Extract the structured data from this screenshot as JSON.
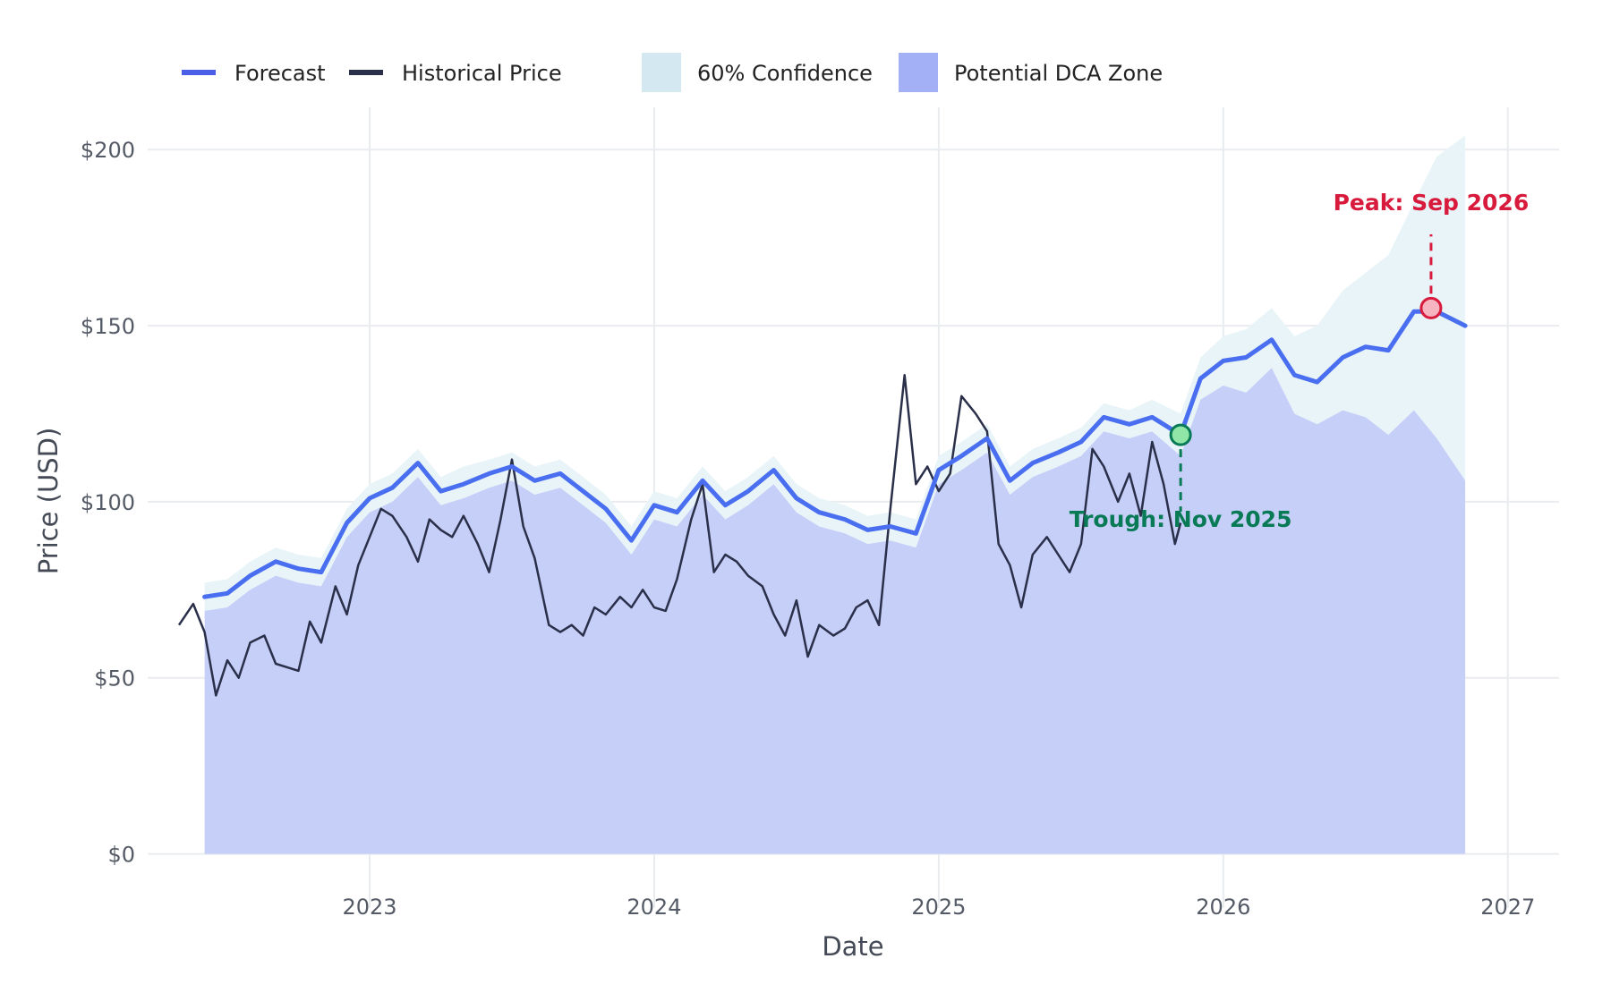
{
  "chart_data": {
    "type": "line",
    "title": "",
    "xlabel": "Date",
    "ylabel": "Price (USD)",
    "xlim": [
      2022.22,
      2027.18
    ],
    "ylim": [
      -9,
      212
    ],
    "x_ticks": [
      {
        "value": 2023,
        "label": "2023"
      },
      {
        "value": 2024,
        "label": "2024"
      },
      {
        "value": 2025,
        "label": "2025"
      },
      {
        "value": 2026,
        "label": "2026"
      },
      {
        "value": 2027,
        "label": "2027"
      }
    ],
    "y_ticks": [
      {
        "value": 0,
        "label": "$0"
      },
      {
        "value": 50,
        "label": "$50"
      },
      {
        "value": 100,
        "label": "$100"
      },
      {
        "value": 150,
        "label": "$150"
      },
      {
        "value": 200,
        "label": "$200"
      }
    ],
    "legend": {
      "position": "top-left",
      "items": [
        {
          "label": "Forecast",
          "kind": "line",
          "color": "#4a5ee8"
        },
        {
          "label": "Historical Price",
          "kind": "line",
          "color": "#2a2f4a"
        },
        {
          "label": "60% Confidence",
          "kind": "area",
          "color": "#d4e8f1"
        },
        {
          "label": "Potential DCA Zone",
          "kind": "area",
          "color": "#a4b0f5"
        }
      ]
    },
    "colors": {
      "forecast": "#4a6ef0",
      "historical": "#2a2f4a",
      "confidence": "#e8f4f8",
      "dca": "#c6cff8",
      "grid": "#e9ecef",
      "peak": "#d81a3c",
      "trough": "#087a55"
    },
    "series": [
      {
        "name": "Forecast",
        "x": [
          2022.42,
          2022.5,
          2022.58,
          2022.67,
          2022.75,
          2022.83,
          2022.92,
          2023.0,
          2023.08,
          2023.17,
          2023.25,
          2023.33,
          2023.42,
          2023.5,
          2023.58,
          2023.67,
          2023.75,
          2023.83,
          2023.92,
          2024.0,
          2024.08,
          2024.17,
          2024.25,
          2024.33,
          2024.42,
          2024.5,
          2024.58,
          2024.67,
          2024.75,
          2024.83,
          2024.92,
          2025.0,
          2025.08,
          2025.17,
          2025.25,
          2025.33,
          2025.42,
          2025.5,
          2025.58,
          2025.67,
          2025.75,
          2025.85,
          2025.92,
          2026.0,
          2026.08,
          2026.17,
          2026.25,
          2026.33,
          2026.42,
          2026.5,
          2026.58,
          2026.67,
          2026.75,
          2026.85
        ],
        "values": [
          73,
          74,
          79,
          83,
          81,
          80,
          94,
          101,
          104,
          111,
          103,
          105,
          108,
          110,
          106,
          108,
          103,
          98,
          89,
          99,
          97,
          106,
          99,
          103,
          109,
          101,
          97,
          95,
          92,
          93,
          91,
          109,
          113,
          118,
          106,
          111,
          114,
          117,
          124,
          122,
          124,
          119,
          135,
          140,
          141,
          146,
          136,
          134,
          141,
          144,
          143,
          154,
          154,
          150
        ]
      },
      {
        "name": "Historical Price",
        "x": [
          2022.33,
          2022.38,
          2022.42,
          2022.46,
          2022.5,
          2022.54,
          2022.58,
          2022.63,
          2022.67,
          2022.71,
          2022.75,
          2022.79,
          2022.83,
          2022.88,
          2022.92,
          2022.96,
          2023.0,
          2023.04,
          2023.08,
          2023.13,
          2023.17,
          2023.21,
          2023.25,
          2023.29,
          2023.33,
          2023.38,
          2023.42,
          2023.46,
          2023.5,
          2023.54,
          2023.58,
          2023.63,
          2023.67,
          2023.71,
          2023.75,
          2023.79,
          2023.83,
          2023.88,
          2023.92,
          2023.96,
          2024.0,
          2024.04,
          2024.08,
          2024.13,
          2024.17,
          2024.21,
          2024.25,
          2024.29,
          2024.33,
          2024.38,
          2024.42,
          2024.46,
          2024.5,
          2024.54,
          2024.58,
          2024.63,
          2024.67,
          2024.71,
          2024.75,
          2024.79,
          2024.83,
          2024.88,
          2024.92,
          2024.96,
          2025.0,
          2025.04,
          2025.08,
          2025.13,
          2025.17,
          2025.21,
          2025.25,
          2025.29,
          2025.33,
          2025.38,
          2025.42,
          2025.46,
          2025.5,
          2025.54,
          2025.58,
          2025.63,
          2025.67,
          2025.71,
          2025.75,
          2025.79,
          2025.83,
          2025.85
        ],
        "values": [
          65,
          71,
          63,
          45,
          55,
          50,
          60,
          62,
          54,
          53,
          52,
          66,
          60,
          76,
          68,
          82,
          90,
          98,
          96,
          90,
          83,
          95,
          92,
          90,
          96,
          88,
          80,
          95,
          112,
          93,
          84,
          65,
          63,
          65,
          62,
          70,
          68,
          73,
          70,
          75,
          70,
          69,
          78,
          95,
          105,
          80,
          85,
          83,
          79,
          76,
          68,
          62,
          72,
          56,
          65,
          62,
          64,
          70,
          72,
          65,
          98,
          136,
          105,
          110,
          103,
          108,
          130,
          125,
          120,
          88,
          82,
          70,
          85,
          90,
          85,
          80,
          88,
          115,
          110,
          100,
          108,
          96,
          117,
          105,
          88,
          94
        ]
      },
      {
        "name": "60% Confidence",
        "x": [
          2022.42,
          2022.5,
          2022.58,
          2022.67,
          2022.75,
          2022.83,
          2022.92,
          2023.0,
          2023.08,
          2023.17,
          2023.25,
          2023.33,
          2023.42,
          2023.5,
          2023.58,
          2023.67,
          2023.75,
          2023.83,
          2023.92,
          2024.0,
          2024.08,
          2024.17,
          2024.25,
          2024.33,
          2024.42,
          2024.5,
          2024.58,
          2024.67,
          2024.75,
          2024.83,
          2024.92,
          2025.0,
          2025.08,
          2025.17,
          2025.25,
          2025.33,
          2025.42,
          2025.5,
          2025.58,
          2025.67,
          2025.75,
          2025.85,
          2025.92,
          2026.0,
          2026.08,
          2026.17,
          2026.25,
          2026.33,
          2026.42,
          2026.5,
          2026.58,
          2026.67,
          2026.75,
          2026.85
        ],
        "upper": [
          77,
          78,
          83,
          87,
          85,
          84,
          98,
          105,
          108,
          115,
          107,
          110,
          112,
          114,
          110,
          112,
          107,
          102,
          93,
          103,
          101,
          110,
          103,
          107,
          113,
          105,
          101,
          99,
          96,
          97,
          95,
          113,
          117,
          122,
          110,
          115,
          118,
          121,
          128,
          126,
          129,
          125,
          141,
          147,
          149,
          155,
          147,
          150,
          160,
          165,
          170,
          185,
          198,
          204
        ],
        "lower": [
          69,
          70,
          75,
          79,
          77,
          76,
          90,
          97,
          100,
          107,
          99,
          101,
          104,
          106,
          102,
          104,
          99,
          94,
          85,
          95,
          93,
          102,
          95,
          99,
          105,
          97,
          93,
          91,
          88,
          89,
          87,
          105,
          109,
          114,
          102,
          107,
          110,
          113,
          120,
          118,
          120,
          113,
          129,
          133,
          131,
          138,
          125,
          122,
          126,
          124,
          119,
          126,
          118,
          106
        ]
      }
    ],
    "annotations": [
      {
        "type": "trough",
        "label": "Trough: Nov 2025",
        "x": 2025.85,
        "y": 119
      },
      {
        "type": "peak",
        "label": "Peak: Sep 2026",
        "x": 2026.73,
        "y": 155
      }
    ]
  }
}
